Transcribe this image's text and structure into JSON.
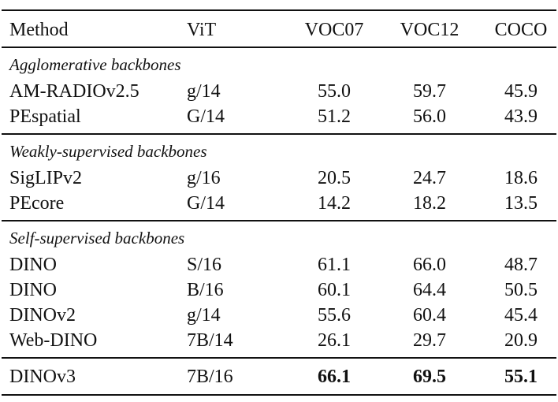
{
  "table": {
    "header": [
      "Method",
      "ViT",
      "VOC07",
      "VOC12",
      "COCO"
    ],
    "groups": [
      {
        "title": "Agglomerative backbones",
        "rows": [
          [
            "AM-RADIOv2.5",
            "g/14",
            "55.0",
            "59.7",
            "45.9"
          ],
          [
            "PEspatial",
            "G/14",
            "51.2",
            "56.0",
            "43.9"
          ]
        ]
      },
      {
        "title": "Weakly-supervised backbones",
        "rows": [
          [
            "SigLIPv2",
            "g/16",
            "20.5",
            "24.7",
            "18.6"
          ],
          [
            "PEcore",
            "G/14",
            "14.2",
            "18.2",
            "13.5"
          ]
        ]
      },
      {
        "title": "Self-supervised backbones",
        "rows": [
          [
            "DINO",
            "S/16",
            "61.1",
            "66.0",
            "48.7"
          ],
          [
            "DINO",
            "B/16",
            "60.1",
            "64.4",
            "50.5"
          ],
          [
            "DINOv2",
            "g/14",
            "55.6",
            "60.4",
            "45.4"
          ],
          [
            "Web-DINO",
            "7B/14",
            "26.1",
            "29.7",
            "20.9"
          ]
        ]
      },
      {
        "rows": [
          [
            "DINOv3",
            "7B/16",
            "66.1",
            "69.5",
            "55.1"
          ]
        ]
      }
    ]
  }
}
